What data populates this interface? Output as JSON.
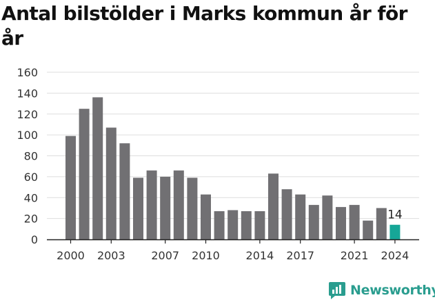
{
  "chart_data": {
    "type": "bar",
    "title": "Antal bilstölder i Marks kommun år för år",
    "categories": [
      "2000",
      "2001",
      "2002",
      "2003",
      "2004",
      "2005",
      "2006",
      "2007",
      "2008",
      "2009",
      "2010",
      "2011",
      "2012",
      "2013",
      "2014",
      "2015",
      "2016",
      "2017",
      "2018",
      "2019",
      "2020",
      "2021",
      "2022",
      "2023",
      "2024"
    ],
    "values": [
      99,
      125,
      136,
      107,
      92,
      59,
      66,
      60,
      66,
      59,
      43,
      27,
      28,
      27,
      27,
      63,
      48,
      43,
      33,
      42,
      31,
      33,
      18,
      30,
      14
    ],
    "x_tick_labels": [
      "2000",
      "2003",
      "2007",
      "2010",
      "2014",
      "2017",
      "2021",
      "2024"
    ],
    "y_ticks": [
      0,
      20,
      40,
      60,
      80,
      100,
      120,
      140,
      160
    ],
    "ylim": [
      0,
      160
    ],
    "xlabel": "",
    "ylabel": "",
    "grid": "horizontal",
    "highlight_label": "14",
    "colors": {
      "bar": "#717073",
      "highlight": "#16a697",
      "grid": "#dddddd"
    }
  },
  "branding": {
    "logo_text": "Newsworthy",
    "logo_icon": "chart-bubble-icon",
    "color": "#2a9d8f"
  }
}
